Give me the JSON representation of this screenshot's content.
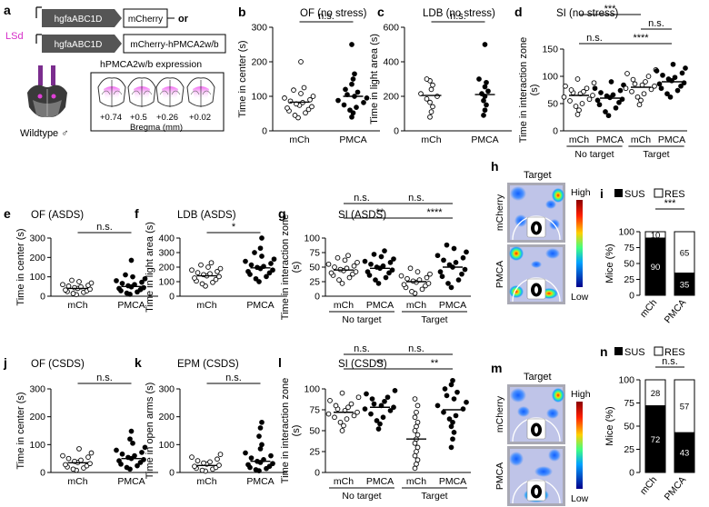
{
  "panel_a": {
    "letter": "a",
    "region": "LSd",
    "construct1": {
      "promoter": "hgfaABC1D",
      "gene": "mCherry",
      "suffix": "or"
    },
    "construct2": {
      "promoter": "hgfaABC1D",
      "gene": "mCherry-hPMCA2w/b"
    },
    "expression_title": "hPMCA2w/b expression",
    "bregma_values": [
      "+0.74",
      "+0.5",
      "+0.26",
      "+0.02"
    ],
    "bregma_label": "Bregma (mm)",
    "mouse_label": "Wildtype ♂",
    "colors": {
      "purple": "#7b2d8e",
      "magenta": "#e040d8",
      "lsd": "#d62cc8"
    }
  },
  "heatmaps": [
    {
      "letter": "h",
      "title": "Target",
      "rows": [
        "mCherry",
        "PMCA"
      ],
      "legend_high": "High",
      "legend_low": "Low"
    },
    {
      "letter": "m",
      "title": "Target",
      "rows": [
        "mCherry",
        "PMCA"
      ],
      "legend_high": "High",
      "legend_low": "Low"
    }
  ],
  "chart_data": [
    {
      "id": "b",
      "letter": "b",
      "type": "scatter",
      "title": "OF (no stress)",
      "ylabel": "Time in center (s)",
      "yticks": [
        0,
        100,
        200,
        300
      ],
      "ylim": [
        0,
        300
      ],
      "categories": [
        "mCh",
        "PMCA"
      ],
      "series": [
        {
          "group": "mCh",
          "filled": false,
          "mean": 83,
          "values": [
            38,
            45,
            52,
            58,
            62,
            66,
            70,
            74,
            78,
            82,
            86,
            90,
            95,
            100,
            108,
            118,
            125,
            200
          ]
        },
        {
          "group": "PMCA",
          "filled": true,
          "mean": 100,
          "values": [
            40,
            52,
            60,
            68,
            75,
            82,
            88,
            95,
            100,
            105,
            112,
            120,
            135,
            150,
            165,
            250
          ]
        }
      ],
      "comparisons": [
        {
          "from": 0,
          "to": 1,
          "label": "n.s.",
          "level": 0
        }
      ]
    },
    {
      "id": "c",
      "letter": "c",
      "type": "scatter",
      "title": "LDB (no stress)",
      "ylabel": "Time in light area (s)",
      "yticks": [
        0,
        200,
        400,
        600
      ],
      "ylim": [
        0,
        600
      ],
      "categories": [
        "mCh",
        "PMCA"
      ],
      "series": [
        {
          "group": "mCh",
          "filled": false,
          "mean": 205,
          "values": [
            80,
            110,
            140,
            165,
            185,
            200,
            215,
            240,
            265,
            290,
            300
          ]
        },
        {
          "group": "PMCA",
          "filled": true,
          "mean": 210,
          "values": [
            90,
            120,
            150,
            175,
            200,
            215,
            230,
            255,
            280,
            300,
            500
          ]
        }
      ],
      "comparisons": [
        {
          "from": 0,
          "to": 1,
          "label": "n.s.",
          "level": 0
        }
      ]
    },
    {
      "id": "d",
      "letter": "d",
      "type": "scatter",
      "title": "SI (no stress)",
      "ylabel": "Time in interaction zone (s)",
      "yticks": [
        0,
        50,
        100,
        150
      ],
      "ylim": [
        0,
        150
      ],
      "categories": [
        "mCh",
        "PMCA",
        "mCh",
        "PMCA"
      ],
      "groups": [
        {
          "label": "No target",
          "from": 0,
          "to": 1
        },
        {
          "label": "Target",
          "from": 2,
          "to": 3
        }
      ],
      "series": [
        {
          "group": "mCh",
          "filled": false,
          "mean": 65,
          "values": [
            30,
            38,
            45,
            50,
            55,
            58,
            62,
            65,
            68,
            70,
            72,
            75,
            78,
            82,
            88,
            95
          ]
        },
        {
          "group": "PMCA",
          "filled": true,
          "mean": 60,
          "values": [
            28,
            35,
            42,
            48,
            52,
            56,
            58,
            61,
            64,
            66,
            70,
            74,
            78,
            84,
            90
          ]
        },
        {
          "group": "mCh",
          "filled": false,
          "mean": 80,
          "values": [
            48,
            56,
            62,
            68,
            72,
            76,
            78,
            82,
            84,
            86,
            90,
            94,
            100,
            105,
            112
          ]
        },
        {
          "group": "PMCA",
          "filled": true,
          "mean": 90,
          "values": [
            62,
            68,
            74,
            78,
            82,
            86,
            88,
            92,
            95,
            98,
            102,
            106,
            110,
            115,
            122
          ]
        }
      ],
      "comparisons": [
        {
          "from": 0,
          "to": 2,
          "label": "***",
          "level": 2
        },
        {
          "from": 2,
          "to": 3,
          "label": "n.s.",
          "level": 1
        },
        {
          "from": 0,
          "to": 1,
          "label": "n.s.",
          "level": 0
        },
        {
          "from": 1,
          "to": 3,
          "label": "****",
          "level": 0
        }
      ]
    },
    {
      "id": "e",
      "letter": "e",
      "type": "scatter",
      "title": "OF (ASDS)",
      "ylabel": "Time in center (s)",
      "yticks": [
        0,
        100,
        200,
        300
      ],
      "ylim": [
        0,
        300
      ],
      "categories": [
        "mCh",
        "PMCA"
      ],
      "series": [
        {
          "group": "mCh",
          "filled": false,
          "mean": 40,
          "values": [
            8,
            14,
            20,
            24,
            28,
            32,
            36,
            40,
            44,
            48,
            52,
            56,
            60,
            68,
            75,
            82
          ]
        },
        {
          "group": "PMCA",
          "filled": true,
          "mean": 50,
          "values": [
            10,
            16,
            22,
            28,
            34,
            40,
            44,
            48,
            54,
            60,
            66,
            72,
            80,
            90,
            100,
            110,
            185
          ]
        }
      ],
      "comparisons": [
        {
          "from": 0,
          "to": 1,
          "label": "n.s.",
          "level": 0
        }
      ]
    },
    {
      "id": "f",
      "letter": "f",
      "type": "scatter",
      "title": "LDB (ASDS)",
      "ylabel": "Time in light area (s)",
      "yticks": [
        0,
        100,
        200,
        300,
        400
      ],
      "ylim": [
        0,
        400
      ],
      "categories": [
        "mCh",
        "PMCA"
      ],
      "series": [
        {
          "group": "mCh",
          "filled": false,
          "mean": 140,
          "values": [
            70,
            85,
            95,
            105,
            115,
            125,
            135,
            140,
            148,
            155,
            162,
            170,
            180,
            190,
            200,
            215,
            230
          ]
        },
        {
          "group": "PMCA",
          "filled": true,
          "mean": 195,
          "values": [
            100,
            120,
            135,
            150,
            160,
            170,
            180,
            190,
            198,
            205,
            215,
            225,
            240,
            255,
            275,
            300,
            330,
            400
          ]
        }
      ],
      "comparisons": [
        {
          "from": 0,
          "to": 1,
          "label": "*",
          "level": 0
        }
      ]
    },
    {
      "id": "g",
      "letter": "g",
      "type": "scatter",
      "title": "SI (ASDS)",
      "ylabel": "Time in interaction zone (s)",
      "yticks": [
        0,
        25,
        50,
        75,
        100
      ],
      "ylim": [
        0,
        100
      ],
      "categories": [
        "mCh",
        "PMCA",
        "mCh",
        "PMCA"
      ],
      "groups": [
        {
          "label": "No target",
          "from": 0,
          "to": 1
        },
        {
          "label": "Target",
          "from": 2,
          "to": 3
        }
      ],
      "series": [
        {
          "group": "mCh",
          "filled": false,
          "mean": 45,
          "values": [
            22,
            28,
            32,
            36,
            38,
            40,
            42,
            44,
            46,
            48,
            50,
            52,
            55,
            58,
            62,
            66,
            70
          ]
        },
        {
          "group": "PMCA",
          "filled": true,
          "mean": 48,
          "values": [
            22,
            28,
            32,
            36,
            40,
            42,
            45,
            48,
            50,
            52,
            55,
            58,
            60,
            64,
            68,
            72,
            78
          ]
        },
        {
          "group": "mCh",
          "filled": false,
          "mean": 25,
          "values": [
            5,
            8,
            12,
            15,
            18,
            20,
            22,
            24,
            26,
            28,
            30,
            32,
            35,
            38,
            42,
            48
          ]
        },
        {
          "group": "PMCA",
          "filled": true,
          "mean": 50,
          "values": [
            15,
            22,
            28,
            34,
            38,
            42,
            46,
            50,
            54,
            58,
            62,
            66,
            70,
            76,
            82,
            88
          ]
        }
      ],
      "comparisons": [
        {
          "from": 0,
          "to": 1,
          "label": "n.s.",
          "level": 2
        },
        {
          "from": 1,
          "to": 3,
          "label": "n.s.",
          "level": 2
        },
        {
          "from": 0,
          "to": 2,
          "label": "**",
          "level": 1
        },
        {
          "from": 2,
          "to": 3,
          "label": "****",
          "level": 1
        }
      ]
    },
    {
      "id": "j",
      "letter": "j",
      "type": "scatter",
      "title": "OF (CSDS)",
      "ylabel": "Time in center (s)",
      "yticks": [
        0,
        100,
        200,
        300
      ],
      "ylim": [
        0,
        300
      ],
      "categories": [
        "mCh",
        "PMCA"
      ],
      "series": [
        {
          "group": "mCh",
          "filled": false,
          "mean": 35,
          "values": [
            8,
            12,
            16,
            20,
            24,
            28,
            32,
            36,
            40,
            44,
            50,
            55,
            60,
            70,
            85
          ]
        },
        {
          "group": "PMCA",
          "filled": true,
          "mean": 50,
          "values": [
            12,
            18,
            24,
            30,
            36,
            42,
            46,
            50,
            54,
            60,
            66,
            72,
            80,
            90,
            105,
            120,
            148
          ]
        }
      ],
      "comparisons": [
        {
          "from": 0,
          "to": 1,
          "label": "n.s.",
          "level": 0
        }
      ]
    },
    {
      "id": "k",
      "letter": "k",
      "type": "scatter",
      "title": "EPM (CSDS)",
      "ylabel": "Time in open arms (s)",
      "yticks": [
        0,
        100,
        200,
        300
      ],
      "ylim": [
        0,
        300
      ],
      "categories": [
        "mCh",
        "PMCA"
      ],
      "series": [
        {
          "group": "mCh",
          "filled": false,
          "mean": 25,
          "values": [
            5,
            8,
            12,
            15,
            18,
            22,
            26,
            30,
            34,
            38,
            42,
            48,
            55,
            65
          ]
        },
        {
          "group": "PMCA",
          "filled": true,
          "mean": 40,
          "values": [
            6,
            10,
            14,
            18,
            22,
            28,
            32,
            36,
            40,
            46,
            52,
            60,
            70,
            85,
            100,
            130,
            160,
            180
          ]
        }
      ],
      "comparisons": [
        {
          "from": 0,
          "to": 1,
          "label": "n.s.",
          "level": 0
        }
      ]
    },
    {
      "id": "l",
      "letter": "l",
      "type": "scatter",
      "title": "SI (CSDS)",
      "ylabel": "Time in interaction zone (s)",
      "yticks": [
        0,
        25,
        50,
        75,
        100
      ],
      "ylim": [
        0,
        100
      ],
      "categories": [
        "mCh",
        "PMCA",
        "mCh",
        "PMCA"
      ],
      "groups": [
        {
          "label": "No target",
          "from": 0,
          "to": 1
        },
        {
          "label": "Target",
          "from": 2,
          "to": 3
        }
      ],
      "series": [
        {
          "group": "mCh",
          "filled": false,
          "mean": 72,
          "values": [
            50,
            56,
            60,
            64,
            66,
            68,
            70,
            72,
            74,
            76,
            78,
            80,
            82,
            86,
            90,
            95
          ]
        },
        {
          "group": "PMCA",
          "filled": true,
          "mean": 78,
          "values": [
            52,
            58,
            62,
            66,
            70,
            74,
            76,
            78,
            80,
            82,
            85,
            88,
            90,
            94,
            98
          ]
        },
        {
          "group": "mCh",
          "filled": false,
          "mean": 40,
          "values": [
            5,
            10,
            15,
            20,
            25,
            30,
            35,
            40,
            45,
            50,
            55,
            60,
            66,
            72,
            80,
            88
          ]
        },
        {
          "group": "PMCA",
          "filled": true,
          "mean": 75,
          "values": [
            30,
            40,
            48,
            55,
            60,
            64,
            68,
            72,
            76,
            80,
            84,
            88,
            92,
            96,
            100,
            105,
            110
          ]
        }
      ],
      "comparisons": [
        {
          "from": 0,
          "to": 1,
          "label": "n.s.",
          "level": 2
        },
        {
          "from": 1,
          "to": 3,
          "label": "n.s.",
          "level": 2
        },
        {
          "from": 0,
          "to": 2,
          "label": "**",
          "level": 1
        },
        {
          "from": 2,
          "to": 3,
          "label": "**",
          "level": 1
        }
      ]
    },
    {
      "id": "i",
      "letter": "i",
      "type": "bar",
      "title": "",
      "ylabel": "Mice (%)",
      "legend": [
        "SUS",
        "RES"
      ],
      "yticks": [
        0,
        25,
        50,
        75,
        100
      ],
      "ylim": [
        0,
        100
      ],
      "categories": [
        "mCh",
        "PMCA"
      ],
      "series": [
        {
          "name": "SUS",
          "values": [
            90,
            35
          ]
        },
        {
          "name": "RES",
          "values": [
            10,
            65
          ]
        }
      ],
      "comparison": "***"
    },
    {
      "id": "n",
      "letter": "n",
      "type": "bar",
      "title": "",
      "ylabel": "Mice (%)",
      "legend": [
        "SUS",
        "RES"
      ],
      "yticks": [
        0,
        25,
        50,
        75,
        100
      ],
      "ylim": [
        0,
        100
      ],
      "categories": [
        "mCh",
        "PMCA"
      ],
      "series": [
        {
          "name": "SUS",
          "values": [
            72,
            43
          ]
        },
        {
          "name": "RES",
          "values": [
            28,
            57
          ]
        }
      ],
      "comparison": "n.s."
    }
  ]
}
